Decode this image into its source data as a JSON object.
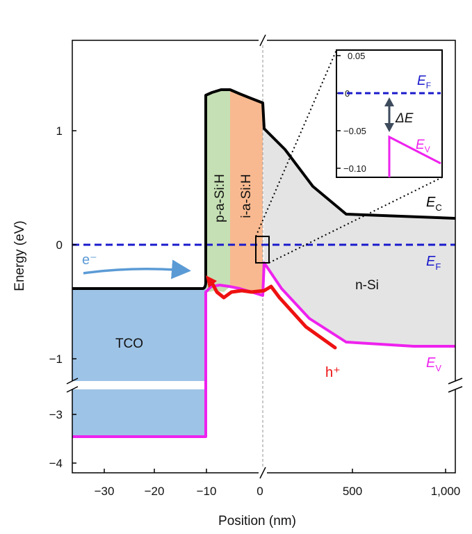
{
  "chart_data": {
    "type": "line",
    "xlabel": "Position (nm)",
    "ylabel": "Energy (eV)",
    "axis_break": true,
    "x_ticks": [
      "−30",
      "−20",
      "−10",
      "0",
      "500",
      "1,000"
    ],
    "y_ticks": [
      "1",
      "0",
      "−1",
      "−3",
      "−4"
    ],
    "x_segments": [
      {
        "range": [
          -35,
          0
        ],
        "unit": "nm"
      },
      {
        "range": [
          0,
          1000
        ],
        "unit": "nm"
      }
    ],
    "y_segments": [
      {
        "range": [
          -1.2,
          1.5
        ],
        "unit": "eV"
      },
      {
        "range": [
          -4.1,
          -2.6
        ],
        "unit": "eV"
      }
    ],
    "regions": [
      "TCO",
      "p-a-Si:H",
      "i-a-Si:H",
      "n-Si"
    ],
    "series": [
      {
        "name": "E_C",
        "color": "#000000",
        "points": [
          [
            -35,
            -0.38
          ],
          [
            -11,
            -0.38
          ],
          [
            -10.5,
            1.3
          ],
          [
            -8,
            1.33
          ],
          [
            -6,
            1.35
          ],
          [
            -3,
            1.3
          ],
          [
            0,
            1.25
          ],
          [
            10,
            1.05
          ],
          [
            100,
            0.78
          ],
          [
            250,
            0.48
          ],
          [
            450,
            0.27
          ],
          [
            1000,
            0.23
          ]
        ]
      },
      {
        "name": "E_F",
        "color": "#1a1acc",
        "points": [
          [
            -35,
            0
          ],
          [
            1000,
            0
          ]
        ]
      },
      {
        "name": "E_V",
        "color": "#ee22ee",
        "points": [
          [
            -35,
            -3.5
          ],
          [
            -10.5,
            -3.5
          ],
          [
            -10.5,
            -0.4
          ],
          [
            -8,
            -0.35
          ],
          [
            -4,
            -0.38
          ],
          [
            0,
            -0.45
          ],
          [
            10,
            -0.15
          ],
          [
            100,
            -0.37
          ],
          [
            250,
            -0.63
          ],
          [
            450,
            -0.86
          ],
          [
            1000,
            -0.89
          ]
        ]
      }
    ],
    "annotations": {
      "electron": "e⁻",
      "hole": "h⁺",
      "region_tco": "TCO",
      "region_p": "p-a-Si:H",
      "region_i": "i-a-Si:H",
      "region_n": "n-Si",
      "ec_label": "E",
      "ec_sub": "C",
      "ef_label": "E",
      "ef_sub": "F",
      "ev_label": "E",
      "ev_sub": "V"
    },
    "inset": {
      "y_ticks": [
        "0.05",
        "0",
        "−0.05",
        "−0.10"
      ],
      "ef_label": "E",
      "ef_sub": "F",
      "ev_label": "E",
      "ev_sub": "V",
      "delta_label": "ΔE",
      "ef_value": 0,
      "ev_peak": -0.06
    },
    "colors": {
      "tco": "#9dc3e6",
      "p_layer": "#c5e0b4",
      "i_layer": "#f8b990",
      "n_si": "#e4e4e4",
      "ec": "#000000",
      "ef": "#1a1acc",
      "ev": "#ee22ee",
      "hole_arrow": "#ee1111",
      "electron_arrow": "#5b9bd5",
      "delta_arrow": "#3d4b5c"
    }
  }
}
